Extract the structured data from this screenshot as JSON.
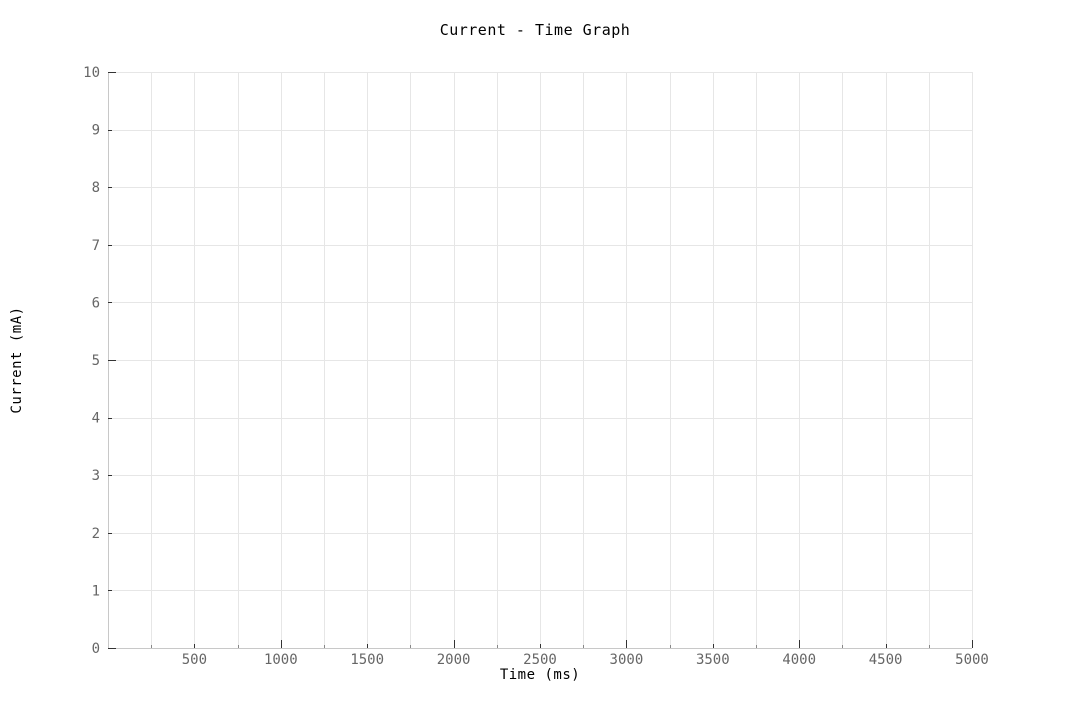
{
  "chart_data": {
    "type": "line",
    "title": "Current - Time Graph",
    "xlabel": "Time (ms)",
    "ylabel": "Current (mA)",
    "xlim": [
      0,
      5000
    ],
    "ylim": [
      0,
      10
    ],
    "x_ticks": [
      500,
      1000,
      1500,
      2000,
      2500,
      3000,
      3500,
      4000,
      4500,
      5000
    ],
    "x_minor_ticks": [
      250,
      750,
      1250,
      1750,
      2250,
      2750,
      3250,
      3750,
      4250,
      4750
    ],
    "y_ticks": [
      0,
      1,
      2,
      3,
      4,
      5,
      6,
      7,
      8,
      9,
      10
    ],
    "grid": true,
    "series": []
  }
}
